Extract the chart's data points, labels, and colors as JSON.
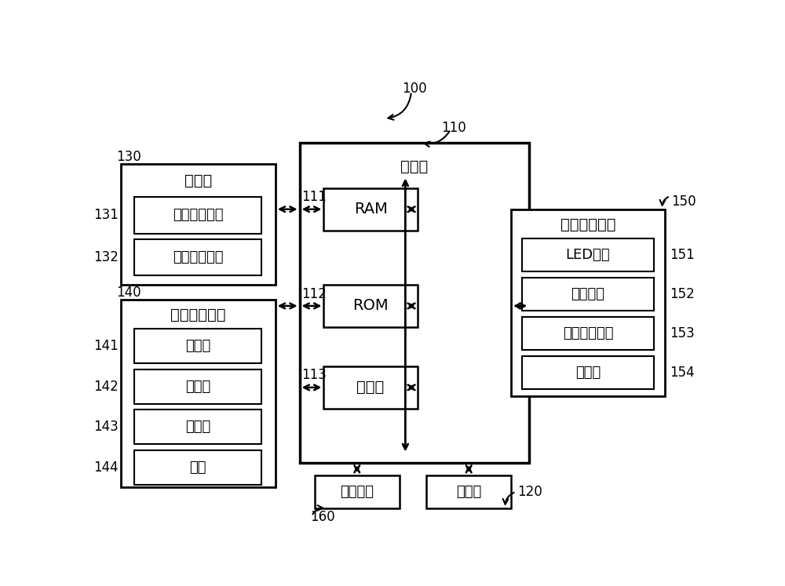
{
  "bg_color": "#ffffff",
  "line_color": "#000000",
  "title_label": "100",
  "controller_label": "控制器",
  "controller_id": "110",
  "comm_box_label": "通信器",
  "comm_box_id": "130",
  "comm_sub": [
    [
      "红外信号接口",
      "131"
    ],
    [
      "射频信号接口",
      "132"
    ]
  ],
  "input_box_label": "用户输入接口",
  "input_box_id": "140",
  "input_sub": [
    [
      "麦克风",
      "141"
    ],
    [
      "触摸板",
      "142"
    ],
    [
      "传感器",
      "143"
    ],
    [
      "按键",
      "144"
    ]
  ],
  "output_box_label": "用户输出接口",
  "output_box_id": "150",
  "output_sub": [
    [
      "LED接口",
      "151"
    ],
    [
      "震动接口",
      "152"
    ],
    [
      "声音输出接口",
      "153"
    ],
    [
      "显示器",
      "154"
    ]
  ],
  "ram_label": "RAM",
  "ram_id": "111",
  "rom_label": "ROM",
  "rom_id": "112",
  "proc_label": "处理器",
  "proc_id": "113",
  "power_label": "供电电源",
  "power_id": "160",
  "storage_label": "存储器",
  "storage_id": "120",
  "font_size_title": 14,
  "font_size_id": 12,
  "font_size_box": 14,
  "font_size_sub": 13
}
